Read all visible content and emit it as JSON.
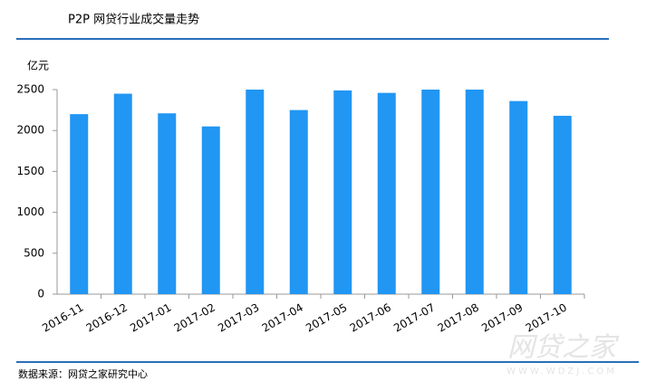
{
  "chart_data": {
    "type": "bar",
    "title": "P2P 网贷行业成交量走势",
    "y_label": "亿元",
    "source": "数据来源：网贷之家研究中心",
    "watermark": {
      "brand": "网贷之家",
      "url": "WWW.WDZJ.COM"
    },
    "categories": [
      "2016-11",
      "2016-12",
      "2017-01",
      "2017-02",
      "2017-03",
      "2017-04",
      "2017-05",
      "2017-06",
      "2017-07",
      "2017-08",
      "2017-09",
      "2017-10"
    ],
    "values": [
      2200,
      2450,
      2210,
      2050,
      2500,
      2250,
      2490,
      2460,
      2500,
      2500,
      2360,
      2180
    ],
    "color": "#2196f3",
    "ylim": [
      0,
      2500
    ],
    "yticks": [
      0,
      500,
      1000,
      1500,
      2000,
      2500
    ],
    "grid": false
  }
}
